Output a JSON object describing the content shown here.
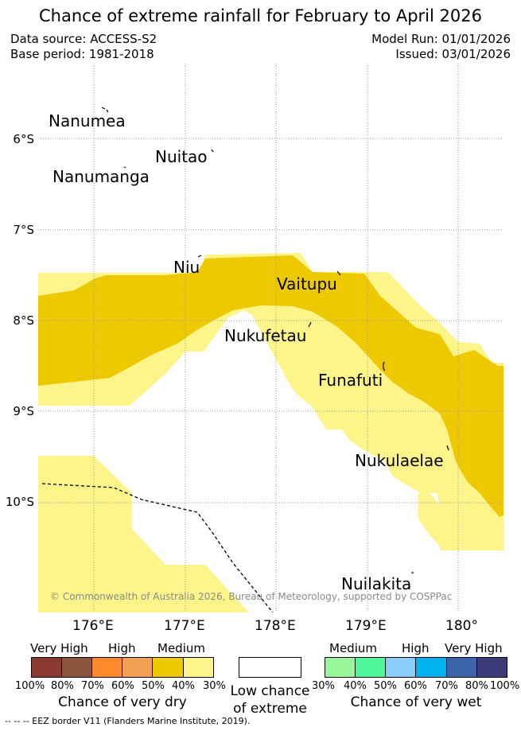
{
  "title": "Chance of extreme rainfall for February to April 2026",
  "meta": {
    "data_source": "Data source: ACCESS-S2",
    "base_period": "Base period: 1981-2018",
    "model_run": "Model Run: 01/01/2026",
    "issued": "Issued: 03/01/2026"
  },
  "map": {
    "lat_labels": [
      "6°S",
      "7°S",
      "8°S",
      "9°S",
      "10°S"
    ],
    "lon_labels": [
      "176°E",
      "177°E",
      "178°E",
      "179°E",
      "180°"
    ],
    "places": [
      "Nanumea",
      "Nuitao",
      "Nanumanga",
      "Niu",
      "Vaitupu",
      "Nukufetau",
      "Funafuti",
      "Nukulaelae",
      "Nuilakita"
    ],
    "copyright": "© Commonwealth of Australia 2026, Bureau of Meteorology, supported by COSPPac",
    "colors": {
      "medium_dry_dark": "#eec900",
      "medium_dry_light": "#fdf58a",
      "grid": "#999999"
    }
  },
  "legend": {
    "dry": {
      "categories": [
        "Very High",
        "High",
        "Medium"
      ],
      "percents": [
        "100%",
        "80%",
        "70%",
        "60%",
        "50%",
        "40%",
        "30%"
      ],
      "colors": [
        "#8b3a2f",
        "#8b5540",
        "#ff8a2b",
        "#f0a050",
        "#eec900",
        "#fdf58a"
      ],
      "label": "Chance of very dry"
    },
    "low": {
      "line1": "Low chance",
      "line2": "of extreme"
    },
    "wet": {
      "categories": [
        "Medium",
        "High",
        "Very High"
      ],
      "percents": [
        "30%",
        "40%",
        "50%",
        "60%",
        "70%",
        "80%",
        "100%"
      ],
      "colors": [
        "#99f799",
        "#4ef79a",
        "#8acdfa",
        "#00b2ee",
        "#3b65a8",
        "#3d3a7a"
      ],
      "label": "Chance of very wet"
    }
  },
  "footer": "-- -- -- EEZ border V11 (Flanders Marine Institute, 2019)."
}
